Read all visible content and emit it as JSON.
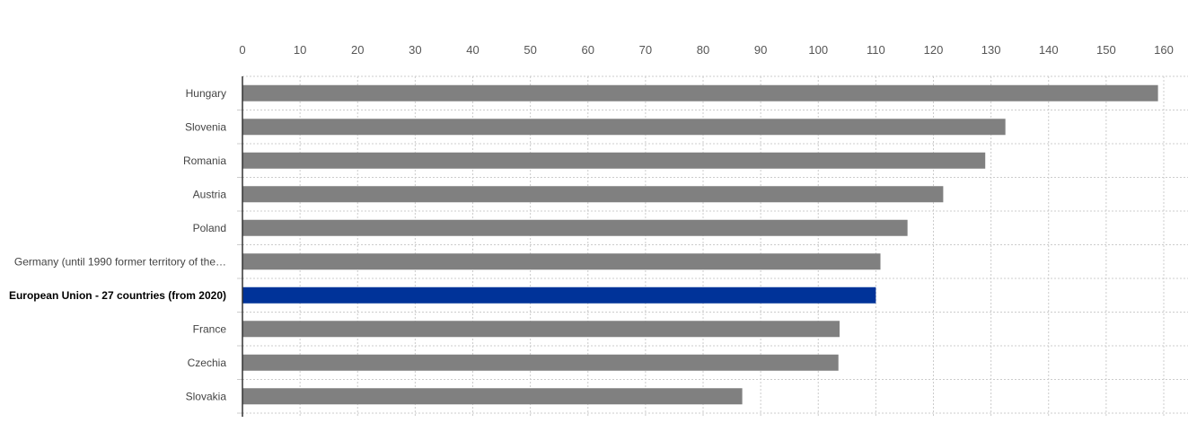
{
  "chart_data": {
    "type": "bar",
    "orientation": "horizontal",
    "categories": [
      "Hungary",
      "Slovenia",
      "Romania",
      "Austria",
      "Poland",
      "Germany (until 1990 former territory of the…",
      "European Union - 27 countries (from 2020)",
      "France",
      "Czechia",
      "Slovakia"
    ],
    "values": [
      159,
      132.5,
      129,
      121.7,
      115.5,
      110.8,
      110,
      103.7,
      103.5,
      86.8
    ],
    "highlight_index": 6,
    "xlim": [
      0,
      160
    ],
    "xticks": [
      0,
      10,
      20,
      30,
      40,
      50,
      60,
      70,
      80,
      90,
      100,
      110,
      120,
      130,
      140,
      150,
      160
    ],
    "x_axis_position": "top",
    "grid": true,
    "colors": {
      "bar": "#808080",
      "highlight": "#003399",
      "grid": "#cccccc",
      "axis": "#333333"
    }
  }
}
